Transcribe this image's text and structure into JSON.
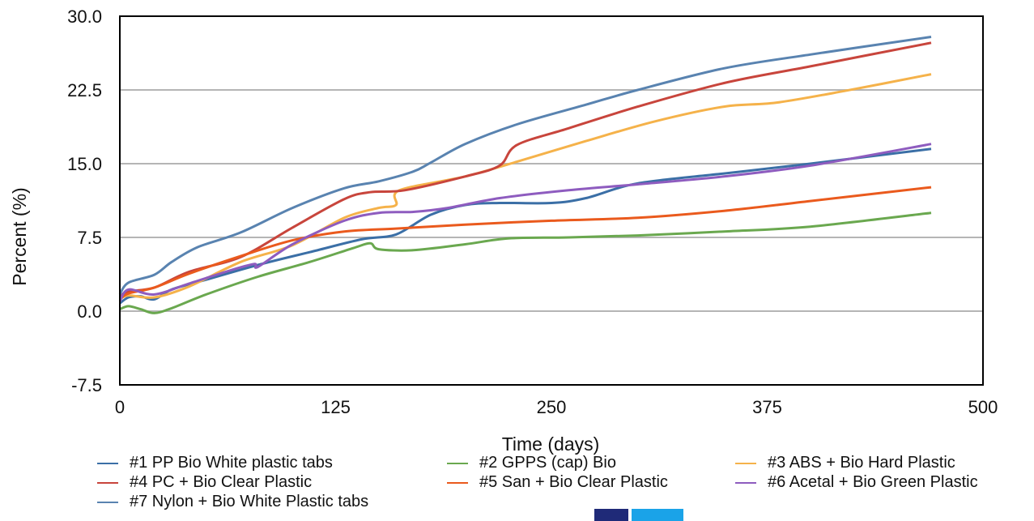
{
  "chart_data": {
    "type": "line",
    "xlabel": "Time (days)",
    "ylabel": "Percent (%)",
    "xlim": [
      0,
      500
    ],
    "ylim": [
      -7.5,
      30
    ],
    "xticks": [
      "0",
      "125",
      "250",
      "375",
      "500"
    ],
    "yticks": [
      "-7.5",
      "0.0",
      "7.5",
      "15.0",
      "22.5",
      "30.0"
    ],
    "grid": "horizontal",
    "legend_position": "bottom",
    "series": [
      {
        "name": "#1 PP Bio White plastic tabs",
        "color": "#3b6fa6",
        "x": [
          0,
          5,
          12,
          20,
          30,
          50,
          80,
          110,
          140,
          160,
          180,
          200,
          220,
          250,
          270,
          300,
          350,
          400,
          470
        ],
        "y": [
          0.8,
          1.4,
          1.5,
          1.2,
          2.2,
          3.2,
          4.7,
          6.0,
          7.3,
          7.8,
          9.8,
          10.8,
          11.0,
          11.0,
          11.5,
          13.0,
          14.0,
          15.0,
          16.5
        ]
      },
      {
        "name": "#2 GPPS (cap) Bio",
        "color": "#6aa84f",
        "x": [
          0,
          5,
          12,
          20,
          30,
          50,
          80,
          110,
          135,
          145,
          150,
          170,
          200,
          225,
          260,
          300,
          350,
          400,
          470
        ],
        "y": [
          0.2,
          0.5,
          0.2,
          -0.2,
          0.3,
          1.7,
          3.5,
          5.0,
          6.4,
          6.9,
          6.3,
          6.2,
          6.8,
          7.4,
          7.5,
          7.7,
          8.1,
          8.6,
          10.0
        ]
      },
      {
        "name": "#3 ABS + Bio Hard Plastic",
        "color": "#f5b24a",
        "x": [
          0,
          5,
          20,
          40,
          70,
          100,
          130,
          150,
          160,
          162,
          200,
          230,
          270,
          310,
          350,
          380,
          420,
          470
        ],
        "y": [
          1.2,
          1.6,
          1.4,
          2.5,
          5.0,
          6.7,
          9.5,
          10.5,
          10.8,
          12.3,
          13.7,
          15.2,
          17.3,
          19.3,
          20.8,
          21.2,
          22.4,
          24.1
        ]
      },
      {
        "name": "#4 PC + Bio Clear Plastic",
        "color": "#c8453c",
        "x": [
          0,
          5,
          20,
          40,
          70,
          100,
          130,
          145,
          165,
          200,
          220,
          230,
          260,
          300,
          350,
          400,
          470
        ],
        "y": [
          1.5,
          2.0,
          2.4,
          4.0,
          5.5,
          8.5,
          11.4,
          12.1,
          12.3,
          13.7,
          14.8,
          16.9,
          18.6,
          20.8,
          23.2,
          24.9,
          27.3
        ]
      },
      {
        "name": "#5 San + Bio Clear Plastic",
        "color": "#ea5a1d",
        "x": [
          0,
          5,
          20,
          40,
          70,
          100,
          130,
          160,
          200,
          250,
          300,
          350,
          400,
          470
        ],
        "y": [
          1.2,
          1.8,
          2.4,
          3.8,
          5.6,
          7.2,
          8.1,
          8.4,
          8.8,
          9.2,
          9.5,
          10.2,
          11.2,
          12.6
        ]
      },
      {
        "name": "#6 Acetal + Bio Green Plastic",
        "color": "#8e5cbf",
        "x": [
          0,
          5,
          20,
          40,
          65,
          78,
          80,
          100,
          130,
          150,
          170,
          190,
          220,
          260,
          300,
          350,
          400,
          470
        ],
        "y": [
          1.0,
          2.2,
          1.7,
          2.8,
          4.2,
          4.8,
          4.5,
          6.8,
          9.2,
          10.0,
          10.1,
          10.5,
          11.5,
          12.3,
          12.9,
          13.7,
          14.8,
          17.0
        ]
      },
      {
        "name": "#7 Nylon + Bio White Plastic tabs",
        "color": "#5983b0",
        "x": [
          0,
          5,
          20,
          30,
          45,
          70,
          100,
          130,
          150,
          170,
          180,
          200,
          230,
          270,
          300,
          350,
          400,
          470
        ],
        "y": [
          1.7,
          2.9,
          3.7,
          5.0,
          6.5,
          8.0,
          10.5,
          12.5,
          13.2,
          14.2,
          15.1,
          17.0,
          19.0,
          21.0,
          22.5,
          24.7,
          26.1,
          27.9
        ]
      }
    ]
  }
}
